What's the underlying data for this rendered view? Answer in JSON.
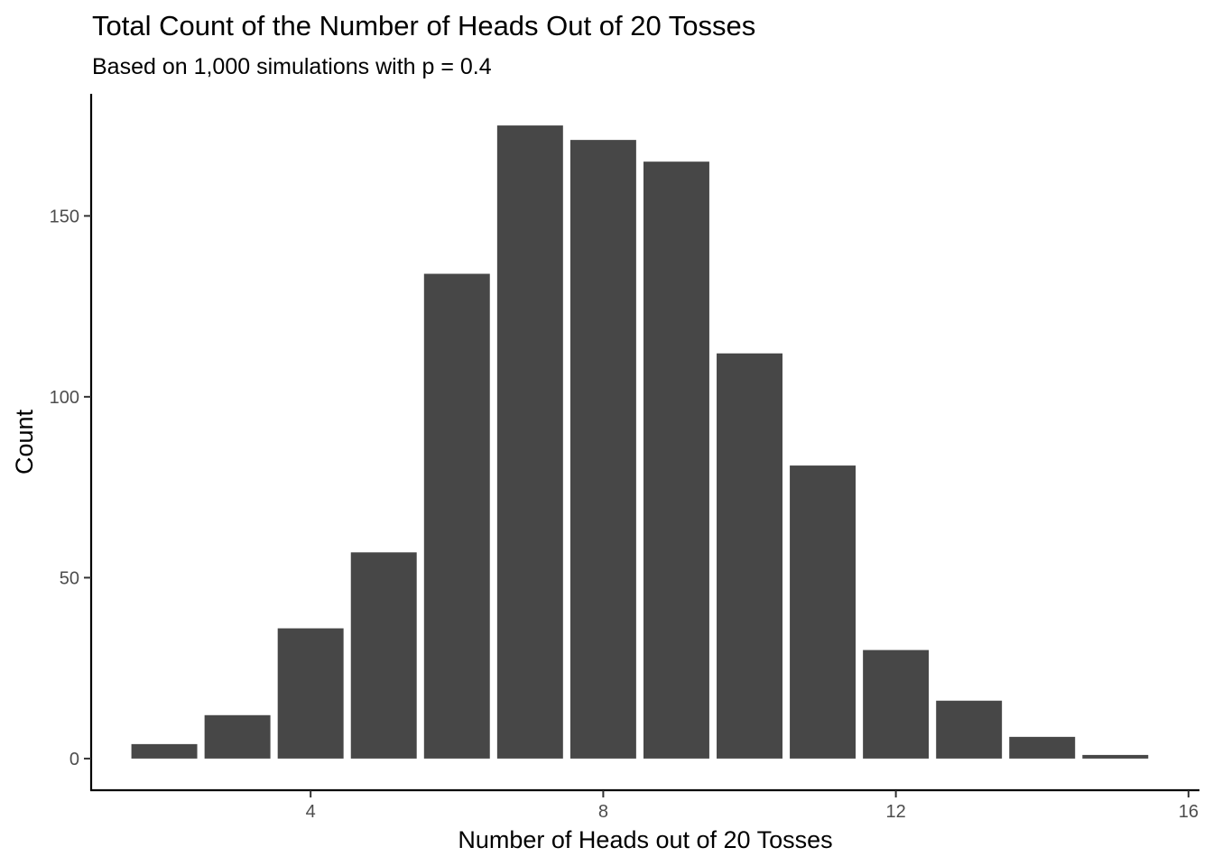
{
  "chart_data": {
    "type": "bar",
    "title": "Total Count of the Number of Heads Out of 20 Tosses",
    "subtitle": "Based on 1,000 simulations with p = 0.4",
    "xlabel": "Number of Heads out of 20 Tosses",
    "ylabel": "Count",
    "x": [
      2,
      3,
      4,
      5,
      6,
      7,
      8,
      9,
      10,
      11,
      12,
      13,
      14,
      15
    ],
    "values": [
      4,
      12,
      36,
      57,
      134,
      175,
      171,
      165,
      112,
      81,
      30,
      16,
      6,
      1
    ],
    "xlim": [
      1.0,
      16.15
    ],
    "ylim": [
      -8.75,
      183.75
    ],
    "x_ticks": [
      4,
      8,
      12,
      16
    ],
    "y_ticks": [
      0,
      50,
      100,
      150
    ],
    "x_tick_labels": [
      "4",
      "8",
      "12",
      "16"
    ],
    "y_tick_labels": [
      "0",
      "50",
      "100",
      "150"
    ],
    "bar_color": "#474747",
    "grid": false,
    "legend": "none"
  }
}
